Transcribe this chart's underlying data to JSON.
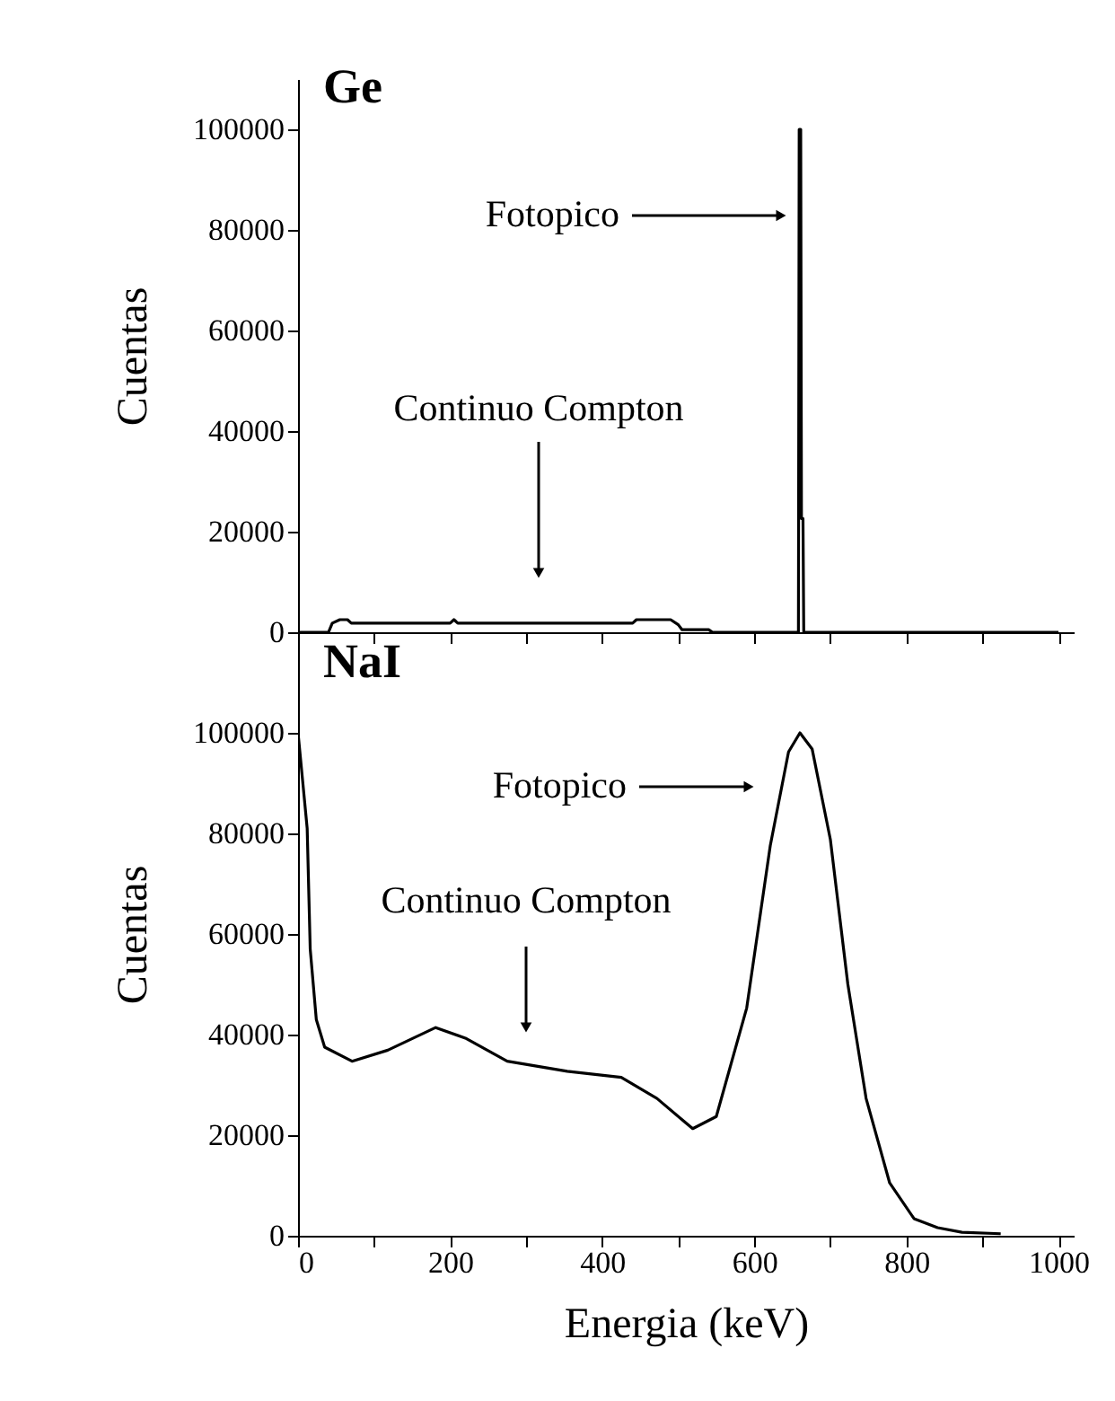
{
  "chart_data": [
    {
      "type": "line",
      "title": "Ge",
      "ylabel": "Cuentas",
      "xlim": [
        0,
        1020
      ],
      "ylim": [
        0,
        110000
      ],
      "tick_labels": "y",
      "xticks": [
        0,
        {
          "value": 100,
          "label": null
        },
        200,
        {
          "value": 300,
          "label": null
        },
        400,
        {
          "value": 500,
          "label": null
        },
        600,
        {
          "value": 700,
          "label": null
        },
        800,
        {
          "value": 900,
          "label": null
        },
        1000
      ],
      "yticks": [
        0,
        20000,
        40000,
        60000,
        80000,
        100000
      ],
      "series": [
        {
          "color": "#000000",
          "x": [
            0,
            40,
            45,
            55,
            65,
            70,
            200,
            205,
            210,
            440,
            445,
            490,
            500,
            505,
            540,
            545,
            658,
            659,
            661,
            662,
            664,
            665,
            1000
          ],
          "values": [
            0,
            0,
            1800,
            2500,
            2500,
            1800,
            1800,
            2500,
            1800,
            1800,
            2500,
            2500,
            1500,
            500,
            500,
            0,
            0,
            100000,
            100000,
            22600,
            22600,
            0,
            0
          ]
        }
      ],
      "annotations": [
        "Fotopico",
        "Continuo Compton"
      ]
    },
    {
      "type": "line",
      "title": "NaI",
      "xlabel": "Energia (keV)",
      "ylabel": "Cuentas",
      "xlim": [
        0,
        1020
      ],
      "ylim": [
        0,
        120000
      ],
      "xticks": [
        0,
        {
          "value": 100,
          "label": null
        },
        200,
        {
          "value": 300,
          "label": null
        },
        400,
        {
          "value": 500,
          "label": null
        },
        600,
        {
          "value": 700,
          "label": null
        },
        800,
        {
          "value": 900,
          "label": null
        },
        1000
      ],
      "yticks": [
        0,
        20000,
        40000,
        60000,
        80000,
        100000
      ],
      "series": [
        {
          "color": "#000000",
          "x": [
            0,
            12,
            16,
            24,
            35,
            71,
            118,
            181,
            220,
            275,
            354,
            425,
            472,
            519,
            550,
            590,
            621,
            645,
            660,
            676,
            700,
            723,
            747,
            778,
            810,
            841,
            873,
            924
          ],
          "values": [
            100000,
            81000,
            57000,
            43000,
            37500,
            34700,
            36900,
            41400,
            39300,
            34700,
            32700,
            31500,
            27300,
            21300,
            23700,
            45300,
            77600,
            96200,
            100000,
            96800,
            78800,
            50000,
            27300,
            10500,
            3400,
            1600,
            700,
            400
          ]
        }
      ],
      "annotations": [
        "Fotopico",
        "Continuo Compton"
      ]
    }
  ]
}
